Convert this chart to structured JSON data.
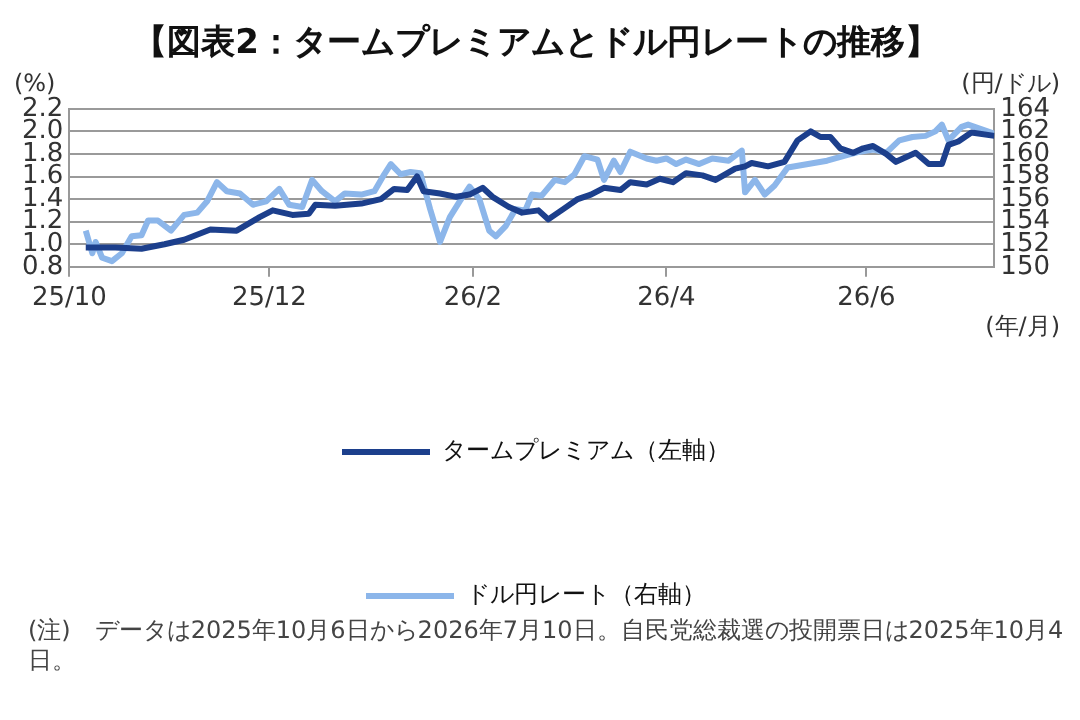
{
  "chart_data": {
    "type": "line",
    "title": "【図表2：タームプレミアムとドル円レートの推移】",
    "xlabel": "(年/月)",
    "ylabel": "(%)",
    "y2label": "(円/ドル)",
    "xlim": [
      "2025-10-01",
      "2026-07-10"
    ],
    "xticks": [
      {
        "value": "2025-10-01",
        "label": "25/10"
      },
      {
        "value": "2025-12-01",
        "label": "25/12"
      },
      {
        "value": "2026-02-01",
        "label": "26/2"
      },
      {
        "value": "2026-04-01",
        "label": "26/4"
      },
      {
        "value": "2026-06-01",
        "label": "26/6"
      }
    ],
    "ylim": [
      0.8,
      2.2
    ],
    "yticks": [
      0.8,
      {
        "value": 1.0,
        "label": "1.0"
      },
      1.2,
      1.4,
      1.6,
      1.8,
      {
        "value": 2.0,
        "label": "2.0"
      },
      2.2
    ],
    "y2lim": [
      150,
      164
    ],
    "y2ticks": [
      150,
      152,
      154,
      156,
      158,
      160,
      162,
      164
    ],
    "grid": "y",
    "legend": "bottom",
    "series": [
      {
        "name": "タームプレミアム（左軸）",
        "color": "#1c3f8c",
        "axis": "y",
        "x": [
          "2025-10-06",
          "2025-10-15",
          "2025-10-23",
          "2025-10-30",
          "2025-11-05",
          "2025-11-13",
          "2025-11-21",
          "2025-11-28",
          "2025-12-02",
          "2025-12-08",
          "2025-12-13",
          "2025-12-15",
          "2025-12-21",
          "2025-12-29",
          "2026-01-04",
          "2026-01-08",
          "2026-01-12",
          "2026-01-15",
          "2026-01-17",
          "2026-01-22",
          "2026-01-27",
          "2026-01-31",
          "2026-02-04",
          "2026-02-07",
          "2026-02-12",
          "2026-02-16",
          "2026-02-21",
          "2026-02-24",
          "2026-03-01",
          "2026-03-05",
          "2026-03-09",
          "2026-03-13",
          "2026-03-18",
          "2026-03-21",
          "2026-03-26",
          "2026-03-30",
          "2026-04-03",
          "2026-04-07",
          "2026-04-12",
          "2026-04-16",
          "2026-04-22",
          "2026-04-25",
          "2026-04-27",
          "2026-05-02",
          "2026-05-07",
          "2026-05-11",
          "2026-05-15",
          "2026-05-18",
          "2026-05-21",
          "2026-05-24",
          "2026-05-28",
          "2026-05-31",
          "2026-06-03",
          "2026-06-07",
          "2026-06-10",
          "2026-06-13",
          "2026-06-16",
          "2026-06-20",
          "2026-06-24",
          "2026-06-26",
          "2026-06-29",
          "2026-07-03",
          "2026-07-10"
        ],
        "values": [
          0.97,
          0.97,
          0.96,
          1.0,
          1.04,
          1.13,
          1.12,
          1.24,
          1.3,
          1.26,
          1.27,
          1.35,
          1.34,
          1.36,
          1.4,
          1.49,
          1.48,
          1.6,
          1.47,
          1.45,
          1.42,
          1.44,
          1.5,
          1.42,
          1.33,
          1.28,
          1.3,
          1.22,
          1.32,
          1.4,
          1.44,
          1.5,
          1.48,
          1.55,
          1.53,
          1.58,
          1.55,
          1.63,
          1.61,
          1.57,
          1.67,
          1.69,
          1.72,
          1.69,
          1.73,
          1.92,
          2.0,
          1.95,
          1.95,
          1.85,
          1.81,
          1.85,
          1.87,
          1.8,
          1.73,
          1.77,
          1.81,
          1.71,
          1.71,
          1.88,
          1.91,
          1.99,
          1.96
        ]
      },
      {
        "name": "ドル円レート（右軸）",
        "color": "#8cb6ea",
        "axis": "y2",
        "x": [
          "2025-10-06",
          "2025-10-07",
          "2025-10-08",
          "2025-10-09",
          "2025-10-11",
          "2025-10-14",
          "2025-10-17",
          "2025-10-20",
          "2025-10-23",
          "2025-10-25",
          "2025-10-28",
          "2025-11-01",
          "2025-11-05",
          "2025-11-09",
          "2025-11-12",
          "2025-11-15",
          "2025-11-18",
          "2025-11-22",
          "2025-11-26",
          "2025-11-30",
          "2025-12-04",
          "2025-12-07",
          "2025-12-11",
          "2025-12-14",
          "2025-12-17",
          "2025-12-21",
          "2025-12-24",
          "2025-12-29",
          "2026-01-02",
          "2026-01-05",
          "2026-01-07",
          "2026-01-10",
          "2026-01-13",
          "2026-01-16",
          "2026-01-19",
          "2026-01-22",
          "2026-01-25",
          "2026-01-28",
          "2026-01-31",
          "2026-02-03",
          "2026-02-06",
          "2026-02-08",
          "2026-02-11",
          "2026-02-14",
          "2026-02-17",
          "2026-02-19",
          "2026-02-22",
          "2026-02-26",
          "2026-03-01",
          "2026-03-04",
          "2026-03-07",
          "2026-03-11",
          "2026-03-13",
          "2026-03-16",
          "2026-03-18",
          "2026-03-21",
          "2026-03-26",
          "2026-03-29",
          "2026-04-01",
          "2026-04-04",
          "2026-04-07",
          "2026-04-11",
          "2026-04-15",
          "2026-04-20",
          "2026-04-24",
          "2026-04-25",
          "2026-04-28",
          "2026-05-01",
          "2026-05-04",
          "2026-05-08",
          "2026-05-12",
          "2026-05-16",
          "2026-05-20",
          "2026-05-26",
          "2026-05-30",
          "2026-06-03",
          "2026-06-07",
          "2026-06-11",
          "2026-06-15",
          "2026-06-19",
          "2026-06-22",
          "2026-06-24",
          "2026-06-26",
          "2026-06-30",
          "2026-07-02",
          "2026-07-10"
        ],
        "values": [
          153.2,
          152.2,
          151.2,
          152.2,
          150.8,
          150.5,
          151.2,
          152.7,
          152.8,
          154.1,
          154.1,
          153.2,
          154.6,
          154.8,
          155.8,
          157.5,
          156.7,
          156.5,
          155.5,
          155.8,
          156.9,
          155.5,
          155.3,
          157.7,
          156.7,
          155.8,
          156.5,
          156.4,
          156.7,
          158.2,
          159.1,
          158.2,
          158.4,
          158.3,
          155.1,
          152.2,
          154.4,
          155.8,
          157.1,
          156.0,
          153.2,
          152.7,
          153.6,
          155.1,
          155.0,
          156.4,
          156.3,
          157.7,
          157.5,
          158.2,
          159.8,
          159.5,
          157.7,
          159.4,
          158.4,
          160.2,
          159.6,
          159.4,
          159.6,
          159.1,
          159.5,
          159.1,
          159.6,
          159.4,
          160.3,
          156.6,
          157.7,
          156.4,
          157.2,
          158.8,
          159.0,
          159.2,
          159.4,
          159.9,
          160.2,
          160.4,
          160.1,
          161.2,
          161.5,
          161.6,
          162.0,
          162.6,
          161.2,
          162.4,
          162.6,
          161.8
        ]
      }
    ],
    "annotations": [
      "(注)　データは2025年10月6日から2026年7月10日。自民党総裁選の投開票日は2025年10月4日。"
    ]
  }
}
